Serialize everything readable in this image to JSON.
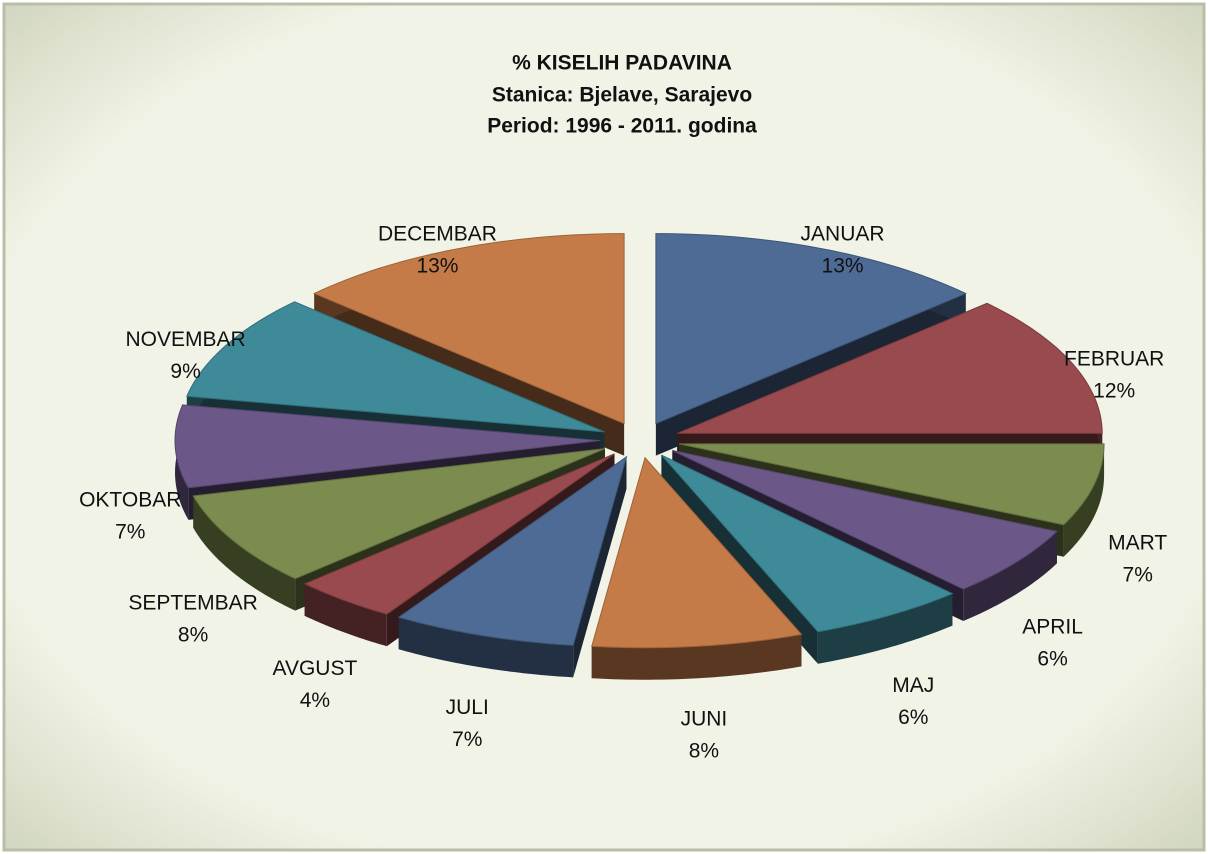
{
  "chart_data": {
    "type": "pie",
    "title": "% KISELIH PADAVINA",
    "subtitles": [
      "Stanica: Bjelave, Sarajevo",
      "Period: 1996 - 2011. godina"
    ],
    "categories": [
      "JANUAR",
      "FEBRUAR",
      "MART",
      "APRIL",
      "MAJ",
      "JUNI",
      "JULI",
      "AVGUST",
      "SEPTEMBAR",
      "OKTOBAR",
      "NOVEMBAR",
      "DECEMBAR"
    ],
    "values": [
      13,
      12,
      7,
      6,
      6,
      8,
      7,
      4,
      8,
      7,
      9,
      13
    ],
    "value_labels": [
      "13%",
      "12%",
      "7%",
      "6%",
      "6%",
      "8%",
      "7%",
      "4%",
      "8%",
      "7%",
      "9%",
      "13%"
    ],
    "colors": [
      "#4d6b95",
      "#984a4e",
      "#7b8c4e",
      "#6b5788",
      "#3f8a98",
      "#c57b48",
      "#4d6b95",
      "#984a4e",
      "#7b8c4e",
      "#6b5788",
      "#3f8a98",
      "#c57b48"
    ]
  }
}
